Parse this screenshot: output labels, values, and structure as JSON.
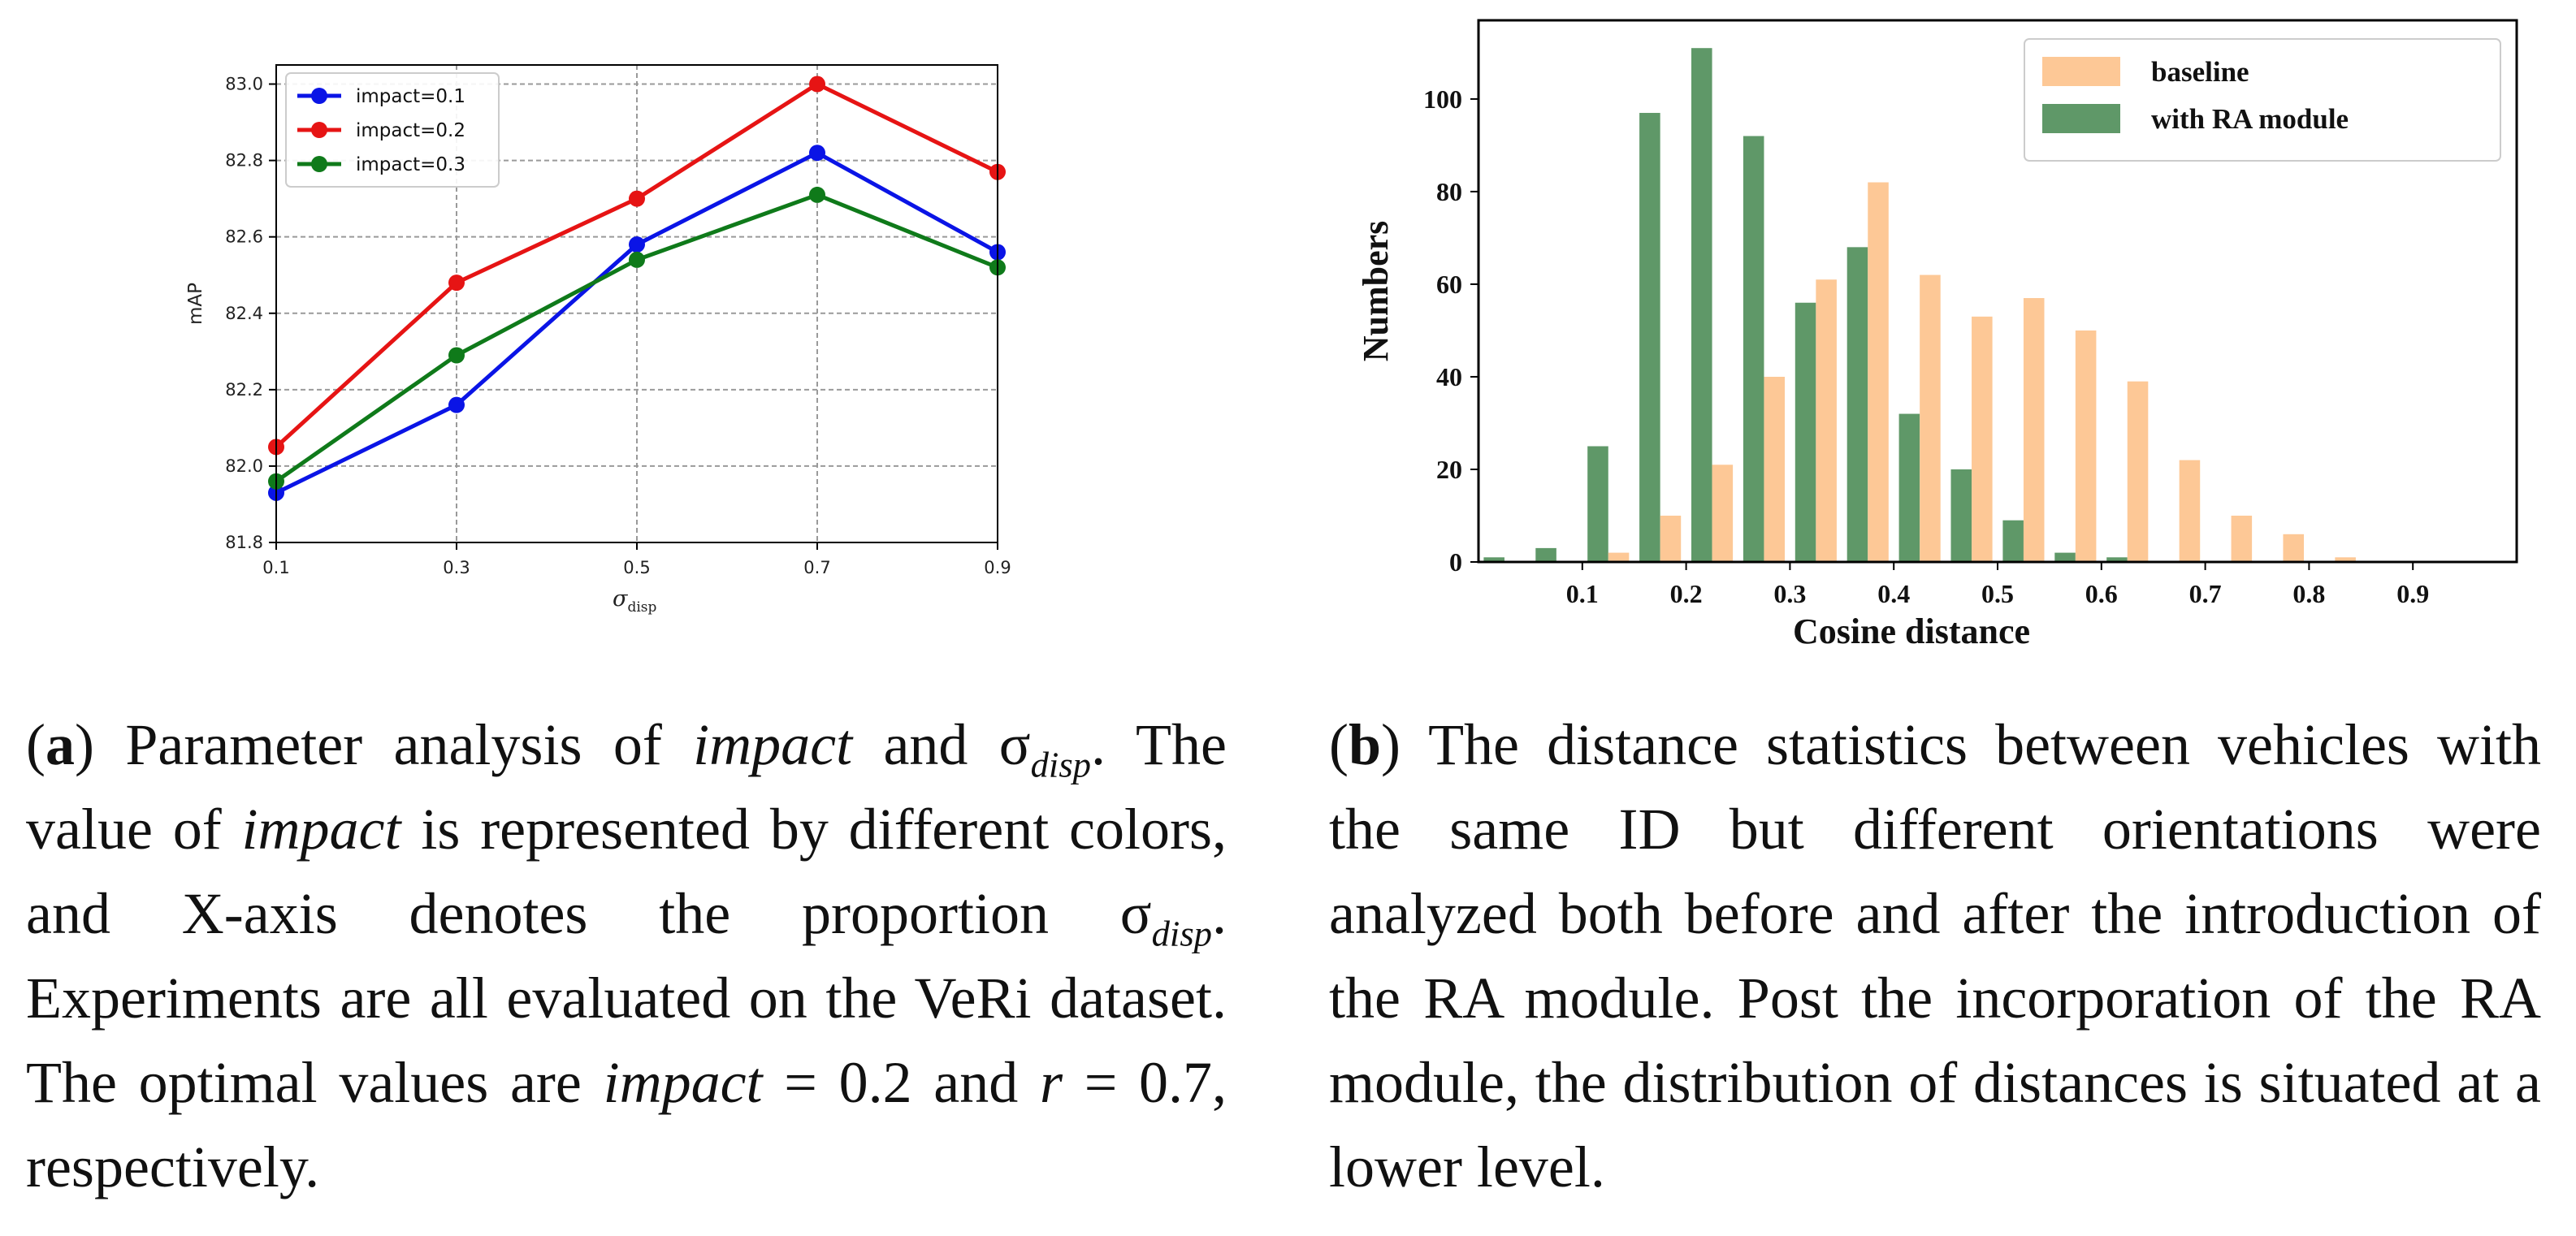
{
  "chart_data": [
    {
      "type": "line",
      "panel": "a",
      "title": "",
      "xlabel": "σ_disp",
      "ylabel": "mAP",
      "x": [
        0.1,
        0.3,
        0.5,
        0.7,
        0.9
      ],
      "xticks": [
        "0.1",
        "0.3",
        "0.5",
        "0.7",
        "0.9"
      ],
      "yticks": [
        "81.8",
        "82.0",
        "82.2",
        "82.4",
        "82.6",
        "82.8",
        "83.0"
      ],
      "xlim": [
        0.1,
        0.9
      ],
      "ylim": [
        81.8,
        83.05
      ],
      "grid": true,
      "legend_position": "top-left",
      "series": [
        {
          "name": "impact=0.1",
          "color": "#0a14e6",
          "values": [
            81.93,
            82.16,
            82.58,
            82.82,
            82.56
          ]
        },
        {
          "name": "impact=0.2",
          "color": "#e61414",
          "values": [
            82.05,
            82.48,
            82.7,
            83.0,
            82.77
          ]
        },
        {
          "name": "impact=0.3",
          "color": "#0f7a1a",
          "values": [
            81.96,
            82.29,
            82.54,
            82.71,
            82.52
          ]
        }
      ]
    },
    {
      "type": "bar",
      "panel": "b",
      "title": "",
      "xlabel": "Cosine distance",
      "ylabel": "Numbers",
      "xticks": [
        "0.1",
        "0.2",
        "0.3",
        "0.4",
        "0.5",
        "0.6",
        "0.7",
        "0.8",
        "0.9"
      ],
      "yticks": [
        "0",
        "20",
        "40",
        "60",
        "80",
        "100"
      ],
      "xlim": [
        0.0,
        1.0
      ],
      "ylim": [
        0,
        117
      ],
      "grid": false,
      "legend_position": "top-right",
      "bins": [
        0.025,
        0.075,
        0.125,
        0.175,
        0.225,
        0.275,
        0.325,
        0.375,
        0.425,
        0.475,
        0.525,
        0.575,
        0.625,
        0.675,
        0.725,
        0.775,
        0.825,
        0.875,
        0.925
      ],
      "series": [
        {
          "name": "baseline",
          "color": "#fdc896",
          "values": [
            0,
            0,
            2,
            10,
            21,
            40,
            61,
            82,
            62,
            53,
            57,
            50,
            39,
            22,
            10,
            6,
            1,
            0,
            0
          ]
        },
        {
          "name": "with RA module",
          "color": "#5f9868",
          "values": [
            1,
            3,
            25,
            97,
            111,
            92,
            56,
            68,
            32,
            20,
            9,
            2,
            1,
            0,
            0,
            0,
            0,
            0,
            0
          ]
        }
      ]
    }
  ],
  "captions": {
    "a": {
      "tag": "a",
      "parts": [
        "Parameter analysis of ",
        "impact",
        " and σ",
        "disp",
        ". The value of ",
        "impact",
        " is represented by dif­ferent colors, and X-axis denotes the propor­tion σ",
        "disp",
        ". Experiments are all evaluated on the VeRi dataset.  The optimal values are ",
        "impact",
        " = 0.2 and ",
        "r",
        " = 0.7, respectively."
      ]
    },
    "b": {
      "tag": "b",
      "text": "The distance statistics between vehicles with the same ID but different orientations were analyzed both before and after the intro­duction of the RA module. Post the incorpo­ration of the RA module, the distribution of distances is situated at a lower level."
    }
  }
}
